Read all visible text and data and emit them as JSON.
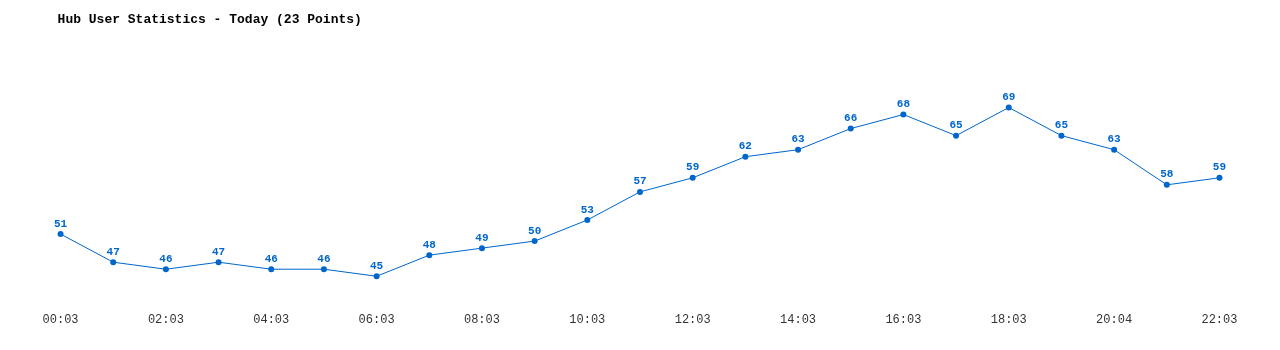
{
  "chart_data": {
    "type": "line",
    "title": "Hub User Statistics - Today (23 Points)",
    "categories": [
      "00:03",
      null,
      "02:03",
      null,
      "04:03",
      null,
      "06:03",
      null,
      "08:03",
      null,
      "10:03",
      null,
      "12:03",
      null,
      "14:03",
      null,
      "16:03",
      null,
      "18:03",
      null,
      "20:04",
      null,
      "22:03"
    ],
    "series": [
      {
        "color": "#0066cc",
        "values": [
          51,
          47,
          46,
          47,
          46,
          46,
          45,
          48,
          49,
          50,
          53,
          57,
          59,
          62,
          63,
          66,
          68,
          65,
          69,
          65,
          63,
          58,
          59
        ]
      }
    ],
    "data_labels": true,
    "marker": "circle",
    "line_style": "solid",
    "legend": false
  }
}
